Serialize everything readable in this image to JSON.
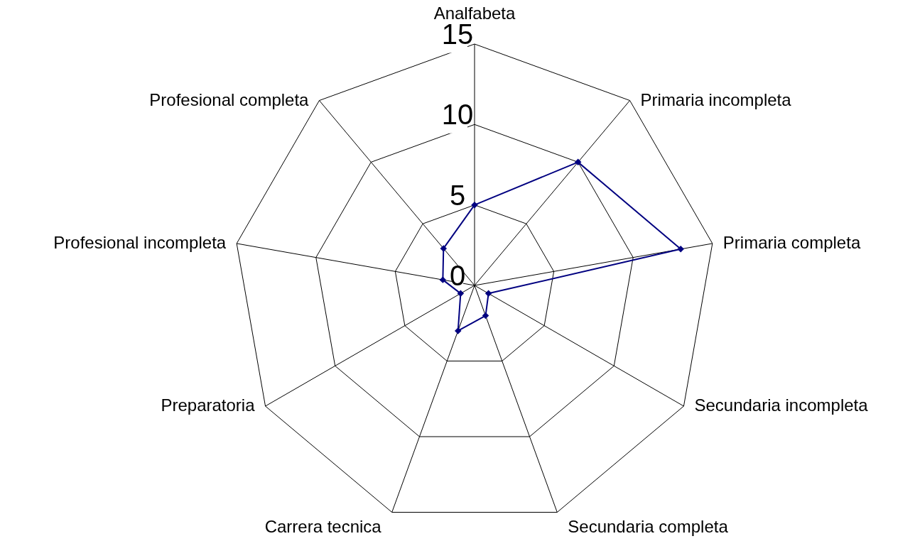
{
  "chart_data": {
    "type": "radar",
    "categories": [
      "Analfabeta",
      "Primaria incompleta",
      "Primaria completa",
      "Secundaria incompleta",
      "Secundaria completa",
      "Carrera tecnica",
      "Preparatoria",
      "Profesional incompleta",
      "Profesional completa"
    ],
    "series": [
      {
        "color": "#000080",
        "values": [
          5,
          10,
          13,
          1,
          2,
          3,
          1,
          2,
          3
        ]
      }
    ],
    "ylim": [
      0,
      15
    ],
    "yticks": [
      0,
      5,
      10,
      15
    ],
    "grid": true,
    "marker": "diamond",
    "line_style": "solid"
  }
}
